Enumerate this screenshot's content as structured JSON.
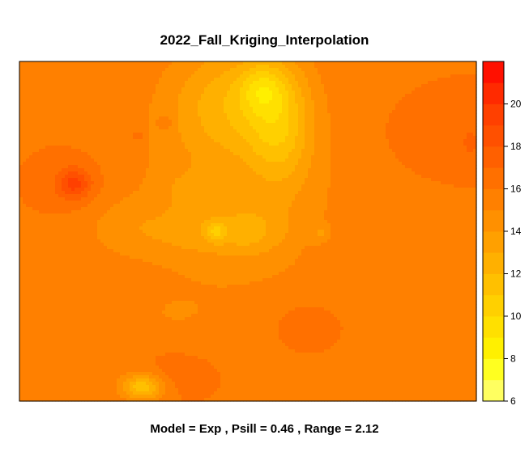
{
  "chart_data": {
    "type": "heatmap",
    "title": "2022_Fall_Kriging_Interpolation",
    "subtitle": "Model = Exp , Psill = 0.46 , Range = 2.12",
    "colorbar": {
      "range": [
        6,
        22
      ],
      "step": 1,
      "tick_values": [
        6,
        8,
        10,
        12,
        14,
        16,
        18,
        20
      ],
      "tick_labels": [
        "6",
        "8",
        "10",
        "12",
        "14",
        "16",
        "18",
        "20"
      ],
      "colors": [
        "#FFFF60",
        "#FFFF20",
        "#FFF000",
        "#FFE000",
        "#FFD000",
        "#FFC000",
        "#FFB000",
        "#FFA000",
        "#FF9000",
        "#FF8000",
        "#FF7000",
        "#FF6000",
        "#FF5000",
        "#FF4000",
        "#FF2A00",
        "#FF1000"
      ]
    },
    "background_value": 16,
    "blobs": [
      {
        "name": "broad-center",
        "x": 0.47,
        "y": 0.42,
        "sx": 0.2,
        "sy": 0.26,
        "amp": -1.5
      },
      {
        "name": "north-ridge",
        "x": 0.46,
        "y": 0.12,
        "sx": 0.09,
        "sy": 0.12,
        "amp": -3.0
      },
      {
        "name": "ne-streak",
        "x": 0.57,
        "y": 0.18,
        "sx": 0.05,
        "sy": 0.13,
        "amp": -3.5
      },
      {
        "name": "ne-peak",
        "x": 0.53,
        "y": 0.08,
        "sx": 0.035,
        "sy": 0.05,
        "amp": -2.5
      },
      {
        "name": "center-band",
        "x": 0.42,
        "y": 0.5,
        "sx": 0.12,
        "sy": 0.05,
        "amp": -1.5
      },
      {
        "name": "center-spot",
        "x": 0.43,
        "y": 0.5,
        "sx": 0.015,
        "sy": 0.02,
        "amp": -2.5
      },
      {
        "name": "south-hot",
        "x": 0.27,
        "y": 0.96,
        "sx": 0.03,
        "sy": 0.025,
        "amp": -4.5
      },
      {
        "name": "south-warm",
        "x": 0.27,
        "y": 0.93,
        "sx": 0.07,
        "sy": 0.05,
        "amp": -1.0
      },
      {
        "name": "west-red",
        "x": 0.12,
        "y": 0.36,
        "sx": 0.025,
        "sy": 0.03,
        "amp": 3.0
      },
      {
        "name": "west-ring",
        "x": 0.12,
        "y": 0.36,
        "sx": 0.06,
        "sy": 0.07,
        "amp": 0.8
      },
      {
        "name": "east-area",
        "x": 0.92,
        "y": 0.22,
        "sx": 0.08,
        "sy": 0.07,
        "amp": 0.8
      },
      {
        "name": "east-spot",
        "x": 0.99,
        "y": 0.24,
        "sx": 0.012,
        "sy": 0.025,
        "amp": 1.0
      },
      {
        "name": "south-red-1",
        "x": 0.32,
        "y": 0.92,
        "sx": 0.07,
        "sy": 0.05,
        "amp": 1.2
      },
      {
        "name": "south-east-red",
        "x": 0.62,
        "y": 0.77,
        "sx": 0.06,
        "sy": 0.06,
        "amp": 0.8
      },
      {
        "name": "east-mid",
        "x": 0.68,
        "y": 0.55,
        "sx": 0.04,
        "sy": 0.05,
        "amp": 0.7
      },
      {
        "name": "lower-left",
        "x": 0.07,
        "y": 0.7,
        "sx": 0.06,
        "sy": 0.08,
        "amp": -0.6
      },
      {
        "name": "center-yellow",
        "x": 0.37,
        "y": 0.38,
        "sx": 0.04,
        "sy": 0.04,
        "amp": -1.0
      },
      {
        "name": "center-east",
        "x": 0.5,
        "y": 0.5,
        "sx": 0.04,
        "sy": 0.05,
        "amp": -1.0
      },
      {
        "name": "center-spot-2",
        "x": 0.66,
        "y": 0.51,
        "sx": 0.015,
        "sy": 0.02,
        "amp": -1.5
      },
      {
        "name": "upper-red-1",
        "x": 0.32,
        "y": 0.18,
        "sx": 0.01,
        "sy": 0.015,
        "amp": 1.5
      },
      {
        "name": "upper-red-2",
        "x": 0.26,
        "y": 0.22,
        "sx": 0.008,
        "sy": 0.012,
        "amp": 1.5
      },
      {
        "name": "left-mid",
        "x": 0.22,
        "y": 0.48,
        "sx": 0.06,
        "sy": 0.06,
        "amp": -0.7
      },
      {
        "name": "south-mid",
        "x": 0.33,
        "y": 0.75,
        "sx": 0.07,
        "sy": 0.05,
        "amp": -0.5
      }
    ]
  }
}
